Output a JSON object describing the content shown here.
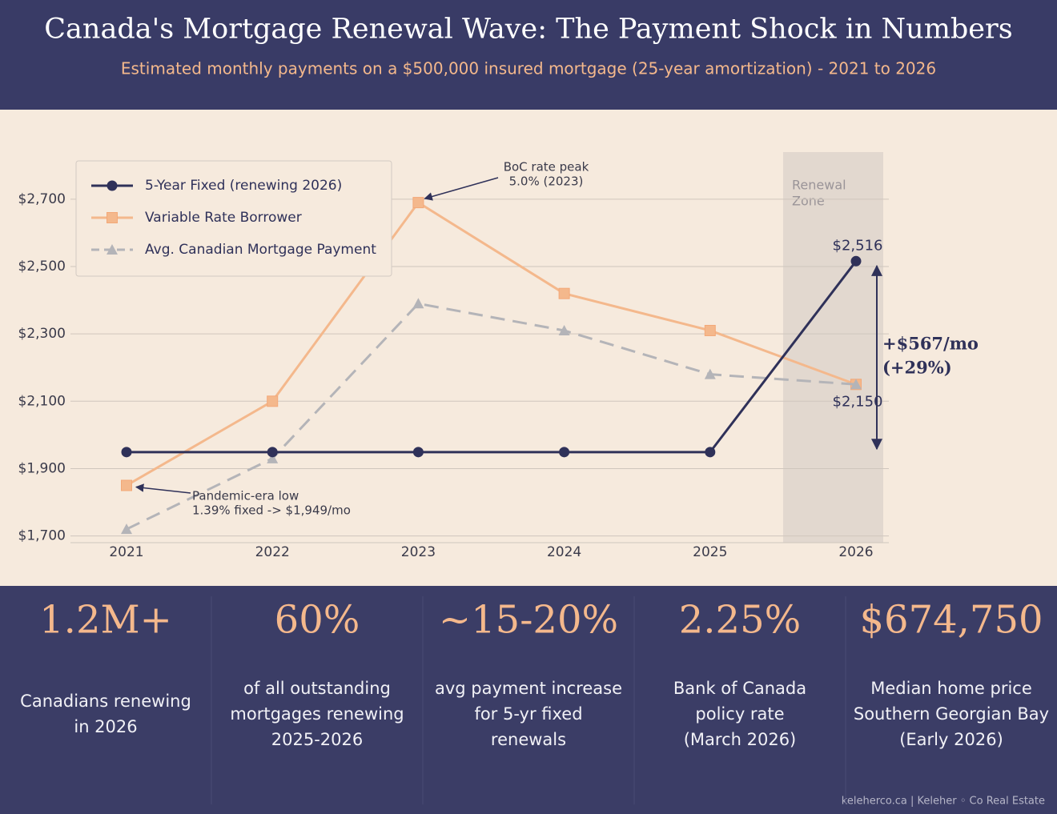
{
  "header": {
    "title": "Canada's Mortgage Renewal Wave: The Payment Shock in Numbers",
    "subtitle": "Estimated monthly payments on a $500,000 insured mortgage (25-year amortization)  -  2021 to 2026"
  },
  "chart_data": {
    "type": "line",
    "categories": [
      "2021",
      "2022",
      "2023",
      "2024",
      "2025",
      "2026"
    ],
    "series": [
      {
        "name": "5-Year Fixed (renewing 2026)",
        "color": "#2f3159",
        "marker": "circle",
        "dashed": false,
        "values": [
          1949,
          1949,
          1949,
          1949,
          1949,
          2516
        ],
        "value_labels": [
          null,
          null,
          null,
          null,
          null,
          "$2,516"
        ]
      },
      {
        "name": "Variable Rate Borrower",
        "color": "#f4b88c",
        "marker": "square",
        "dashed": false,
        "values": [
          1850,
          2100,
          2690,
          2420,
          2310,
          2150
        ],
        "value_labels": [
          null,
          null,
          null,
          null,
          null,
          "$2,150"
        ]
      },
      {
        "name": "Avg. Canadian Mortgage Payment",
        "color": "#b4b4b8",
        "marker": "triangle",
        "dashed": true,
        "values": [
          1720,
          1930,
          2390,
          2310,
          2180,
          2150
        ]
      }
    ],
    "ylim": [
      1680,
      2840
    ],
    "yticks": [
      {
        "value": 1700,
        "label": "$1,700"
      },
      {
        "value": 1900,
        "label": "$1,900"
      },
      {
        "value": 2100,
        "label": "$2,100"
      },
      {
        "value": 2300,
        "label": "$2,300"
      },
      {
        "value": 2500,
        "label": "$2,500"
      },
      {
        "value": 2700,
        "label": "$2,700"
      }
    ],
    "grid": true,
    "legend": "top-left",
    "annotations": {
      "peak": [
        "BoC rate peak",
        "5.0% (2023)"
      ],
      "low": [
        "Pandemic-era low",
        "1.39% fixed -> $1,949/mo"
      ],
      "zone": [
        "Renewal",
        "Zone"
      ],
      "change": [
        "+$567/mo",
        "(+29%)"
      ]
    }
  },
  "stats": [
    {
      "value": "1.2M+",
      "text": [
        "Canadians renewing",
        "in 2026"
      ]
    },
    {
      "value": "60%",
      "text": [
        "of all outstanding",
        "mortgages renewing",
        "2025-2026"
      ]
    },
    {
      "value": "~15-20%",
      "text": [
        "avg payment increase",
        "for 5-yr fixed",
        "renewals"
      ]
    },
    {
      "value": "2.25%",
      "text": [
        "Bank of Canada",
        "policy rate",
        "(March 2026)"
      ]
    },
    {
      "value": "$674,750",
      "text": [
        "Median home price",
        "Southern Georgian Bay",
        "(Early 2026)"
      ]
    }
  ],
  "footer": "keleherco.ca  |  Keleher ◦ Co Real Estate"
}
